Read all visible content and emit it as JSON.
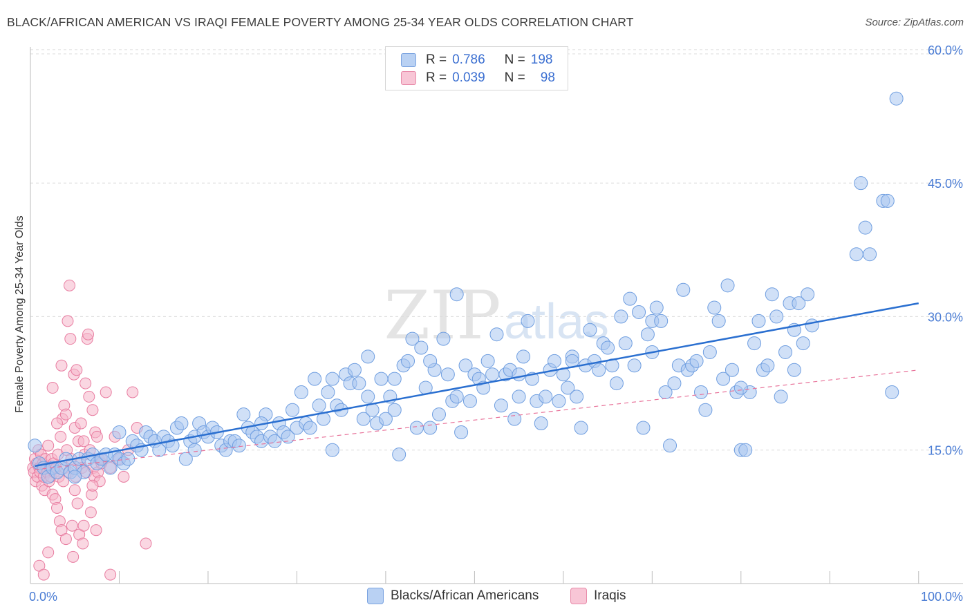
{
  "title": "BLACK/AFRICAN AMERICAN VS IRAQI FEMALE POVERTY AMONG 25-34 YEAR OLDS CORRELATION CHART",
  "source": "Source: ZipAtlas.com",
  "watermark": {
    "zip": "ZIP",
    "atlas": "atlas"
  },
  "colors": {
    "blue_fill": "#a9c6f0",
    "blue_stroke": "#6f9ee0",
    "blue_line": "#2a6fd0",
    "pink_fill": "#f5b6cb",
    "pink_stroke": "#e87ca0",
    "pink_line": "#e8739a",
    "tick_text": "#4a7cd4",
    "grid": "#dcdcdc"
  },
  "legend": {
    "rows": [
      {
        "r_label": "R =",
        "r_value": "0.786",
        "n_label": "N =",
        "n_value": "198"
      },
      {
        "r_label": "R =",
        "r_value": "0.039",
        "n_label": "N =",
        "n_value": "98"
      }
    ]
  },
  "bottom_legend": {
    "series1": "Blacks/African Americans",
    "series2": "Iraqis"
  },
  "chart_data": {
    "type": "scatter",
    "title": "BLACK/AFRICAN AMERICAN VS IRAQI FEMALE POVERTY AMONG 25-34 YEAR OLDS CORRELATION CHART",
    "xlabel": "",
    "ylabel": "Female Poverty Among 25-34 Year Olds",
    "xlim": [
      0,
      105
    ],
    "ylim": [
      0,
      60.3
    ],
    "x_ticks": [
      0,
      100
    ],
    "x_tick_labels": [
      "0.0%",
      "100.0%"
    ],
    "y_ticks": [
      15,
      30,
      45,
      60
    ],
    "y_tick_labels": [
      "15.0%",
      "30.0%",
      "45.0%",
      "60.0%"
    ],
    "grid": true,
    "legend_position": "top-center",
    "series": [
      {
        "name": "Blacks/African Americans",
        "r": 0.786,
        "n": 198,
        "trend": {
          "x": [
            0.5,
            100
          ],
          "y": [
            13.2,
            31.5
          ]
        },
        "points": [
          [
            0.5,
            15.5
          ],
          [
            1.0,
            13.5
          ],
          [
            1.5,
            13.0
          ],
          [
            2.0,
            12.0
          ],
          [
            2.5,
            13.0
          ],
          [
            3.0,
            12.5
          ],
          [
            3.5,
            13.0
          ],
          [
            4.0,
            14.0
          ],
          [
            4.5,
            12.5
          ],
          [
            5.0,
            13.0
          ],
          [
            5.5,
            14.0
          ],
          [
            6.0,
            12.5
          ],
          [
            6.5,
            14.0
          ],
          [
            7.0,
            14.5
          ],
          [
            7.5,
            13.5
          ],
          [
            8.0,
            14.0
          ],
          [
            8.5,
            14.5
          ],
          [
            9.0,
            13.0
          ],
          [
            9.5,
            14.5
          ],
          [
            10.0,
            14.0
          ],
          [
            10.5,
            13.5
          ],
          [
            11.0,
            14.0
          ],
          [
            11.5,
            16.0
          ],
          [
            12.0,
            15.5
          ],
          [
            12.5,
            15.0
          ],
          [
            13.0,
            17.0
          ],
          [
            13.5,
            16.5
          ],
          [
            14.0,
            16.0
          ],
          [
            14.5,
            15.0
          ],
          [
            15.0,
            16.5
          ],
          [
            15.5,
            16.0
          ],
          [
            16.0,
            15.5
          ],
          [
            16.5,
            17.5
          ],
          [
            17.0,
            18.0
          ],
          [
            17.5,
            14.0
          ],
          [
            18.0,
            16.0
          ],
          [
            18.5,
            16.5
          ],
          [
            19.0,
            18.0
          ],
          [
            19.5,
            17.0
          ],
          [
            20.0,
            16.5
          ],
          [
            20.5,
            17.5
          ],
          [
            21.0,
            17.0
          ],
          [
            21.5,
            15.5
          ],
          [
            22.0,
            15.0
          ],
          [
            22.5,
            16.0
          ],
          [
            23.0,
            16.0
          ],
          [
            23.5,
            15.5
          ],
          [
            24.0,
            19.0
          ],
          [
            24.5,
            17.5
          ],
          [
            25.0,
            17.0
          ],
          [
            25.5,
            16.5
          ],
          [
            26.0,
            16.0
          ],
          [
            26.5,
            19.0
          ],
          [
            27.0,
            16.5
          ],
          [
            27.5,
            16.0
          ],
          [
            28.0,
            18.0
          ],
          [
            28.5,
            17.0
          ],
          [
            29.0,
            16.5
          ],
          [
            29.5,
            19.5
          ],
          [
            30.0,
            17.5
          ],
          [
            30.5,
            21.5
          ],
          [
            31.0,
            18.0
          ],
          [
            31.5,
            17.5
          ],
          [
            32.0,
            23.0
          ],
          [
            32.5,
            20.0
          ],
          [
            33.0,
            18.5
          ],
          [
            33.5,
            21.5
          ],
          [
            34.0,
            15.0
          ],
          [
            34.5,
            20.0
          ],
          [
            35.0,
            19.5
          ],
          [
            35.5,
            23.5
          ],
          [
            36.0,
            22.5
          ],
          [
            36.5,
            24.0
          ],
          [
            37.0,
            22.5
          ],
          [
            37.5,
            18.5
          ],
          [
            38.0,
            21.0
          ],
          [
            38.5,
            19.5
          ],
          [
            39.0,
            18.0
          ],
          [
            39.5,
            23.0
          ],
          [
            40.0,
            18.5
          ],
          [
            40.5,
            21.0
          ],
          [
            41.0,
            19.5
          ],
          [
            41.5,
            14.5
          ],
          [
            42.0,
            24.5
          ],
          [
            42.5,
            25.0
          ],
          [
            43.0,
            27.5
          ],
          [
            43.5,
            17.5
          ],
          [
            44.0,
            26.5
          ],
          [
            44.5,
            22.0
          ],
          [
            45.0,
            17.5
          ],
          [
            45.5,
            24.0
          ],
          [
            46.0,
            19.0
          ],
          [
            46.5,
            27.5
          ],
          [
            47.0,
            23.5
          ],
          [
            47.5,
            20.5
          ],
          [
            48.0,
            21.0
          ],
          [
            48.5,
            17.0
          ],
          [
            49.0,
            24.5
          ],
          [
            49.5,
            20.5
          ],
          [
            50.0,
            23.5
          ],
          [
            50.5,
            23.0
          ],
          [
            51.0,
            22.0
          ],
          [
            51.5,
            25.0
          ],
          [
            52.0,
            23.5
          ],
          [
            52.5,
            28.0
          ],
          [
            53.0,
            20.0
          ],
          [
            53.5,
            23.5
          ],
          [
            54.0,
            24.0
          ],
          [
            54.5,
            18.5
          ],
          [
            55.0,
            21.0
          ],
          [
            55.5,
            25.5
          ],
          [
            56.0,
            29.5
          ],
          [
            56.5,
            23.0
          ],
          [
            57.0,
            20.5
          ],
          [
            57.5,
            18.0
          ],
          [
            58.0,
            21.0
          ],
          [
            58.5,
            24.0
          ],
          [
            59.0,
            25.0
          ],
          [
            59.5,
            20.5
          ],
          [
            60.0,
            23.5
          ],
          [
            60.5,
            22.0
          ],
          [
            61.0,
            25.5
          ],
          [
            61.5,
            21.0
          ],
          [
            62.0,
            17.5
          ],
          [
            62.5,
            24.5
          ],
          [
            63.0,
            28.5
          ],
          [
            63.5,
            25.0
          ],
          [
            64.0,
            24.0
          ],
          [
            64.5,
            27.0
          ],
          [
            65.0,
            26.5
          ],
          [
            65.5,
            24.5
          ],
          [
            66.0,
            22.5
          ],
          [
            66.5,
            30.0
          ],
          [
            67.0,
            27.0
          ],
          [
            67.5,
            32.0
          ],
          [
            68.0,
            24.5
          ],
          [
            68.5,
            30.5
          ],
          [
            69.0,
            17.5
          ],
          [
            69.5,
            28.0
          ],
          [
            70.0,
            29.5
          ],
          [
            70.5,
            31.0
          ],
          [
            71.0,
            29.5
          ],
          [
            71.5,
            21.5
          ],
          [
            72.0,
            15.5
          ],
          [
            72.5,
            22.5
          ],
          [
            73.0,
            24.5
          ],
          [
            73.5,
            33.0
          ],
          [
            74.0,
            24.0
          ],
          [
            74.5,
            24.5
          ],
          [
            75.0,
            25.0
          ],
          [
            75.5,
            21.5
          ],
          [
            76.0,
            19.5
          ],
          [
            76.5,
            26.0
          ],
          [
            77.0,
            31.0
          ],
          [
            77.5,
            29.5
          ],
          [
            78.0,
            23.0
          ],
          [
            78.5,
            33.5
          ],
          [
            79.0,
            24.0
          ],
          [
            79.5,
            21.5
          ],
          [
            80.0,
            15.0
          ],
          [
            80.5,
            15.0
          ],
          [
            81.0,
            21.5
          ],
          [
            81.5,
            27.0
          ],
          [
            82.0,
            29.5
          ],
          [
            82.5,
            24.0
          ],
          [
            83.0,
            24.5
          ],
          [
            83.5,
            32.5
          ],
          [
            84.0,
            30.0
          ],
          [
            84.5,
            21.0
          ],
          [
            85.0,
            26.0
          ],
          [
            85.5,
            31.5
          ],
          [
            86.0,
            28.5
          ],
          [
            86.5,
            31.5
          ],
          [
            87.0,
            27.0
          ],
          [
            87.5,
            32.5
          ],
          [
            88.0,
            29.0
          ],
          [
            93.5,
            45.0
          ],
          [
            94.0,
            40.0
          ],
          [
            93.0,
            37.0
          ],
          [
            94.5,
            37.0
          ],
          [
            96.0,
            43.0
          ],
          [
            96.5,
            43.0
          ],
          [
            97.0,
            21.5
          ],
          [
            97.5,
            54.5
          ],
          [
            41.0,
            23.0
          ],
          [
            55.0,
            23.5
          ],
          [
            61.0,
            25.0
          ],
          [
            70.0,
            26.0
          ],
          [
            80.0,
            22.0
          ],
          [
            86.0,
            24.0
          ],
          [
            38.0,
            25.5
          ],
          [
            48.0,
            32.5
          ],
          [
            18.5,
            15.0
          ],
          [
            10.0,
            17.0
          ],
          [
            5.0,
            12.0
          ],
          [
            26.0,
            18.0
          ],
          [
            34.0,
            23.0
          ],
          [
            45.0,
            25.0
          ]
        ]
      },
      {
        "name": "Iraqis",
        "r": 0.039,
        "n": 98,
        "trend": {
          "x": [
            0.5,
            100
          ],
          "y": [
            12.8,
            24.0
          ]
        },
        "points": [
          [
            0.3,
            13.0
          ],
          [
            0.4,
            12.5
          ],
          [
            0.5,
            14.0
          ],
          [
            0.6,
            11.5
          ],
          [
            0.7,
            13.5
          ],
          [
            0.8,
            12.0
          ],
          [
            0.9,
            15.0
          ],
          [
            1.0,
            13.0
          ],
          [
            1.1,
            12.5
          ],
          [
            1.2,
            14.5
          ],
          [
            1.3,
            11.0
          ],
          [
            1.4,
            13.5
          ],
          [
            1.5,
            12.0
          ],
          [
            1.6,
            10.5
          ],
          [
            1.7,
            14.0
          ],
          [
            1.8,
            13.0
          ],
          [
            1.9,
            12.5
          ],
          [
            2.0,
            15.5
          ],
          [
            2.1,
            11.5
          ],
          [
            2.2,
            13.0
          ],
          [
            2.3,
            12.0
          ],
          [
            2.4,
            14.0
          ],
          [
            2.5,
            10.0
          ],
          [
            2.6,
            13.5
          ],
          [
            2.7,
            12.5
          ],
          [
            2.8,
            9.5
          ],
          [
            2.9,
            13.0
          ],
          [
            3.0,
            8.5
          ],
          [
            3.1,
            14.5
          ],
          [
            3.2,
            12.0
          ],
          [
            3.3,
            7.0
          ],
          [
            3.4,
            16.5
          ],
          [
            3.5,
            6.0
          ],
          [
            3.6,
            18.5
          ],
          [
            3.7,
            11.5
          ],
          [
            3.8,
            20.0
          ],
          [
            3.9,
            13.0
          ],
          [
            4.0,
            5.0
          ],
          [
            4.1,
            15.0
          ],
          [
            4.2,
            29.5
          ],
          [
            4.3,
            12.5
          ],
          [
            4.4,
            33.5
          ],
          [
            4.5,
            27.5
          ],
          [
            4.6,
            14.0
          ],
          [
            4.7,
            6.5
          ],
          [
            4.8,
            3.0
          ],
          [
            4.9,
            23.5
          ],
          [
            5.0,
            17.5
          ],
          [
            5.1,
            12.0
          ],
          [
            5.2,
            24.0
          ],
          [
            5.3,
            9.0
          ],
          [
            5.4,
            16.0
          ],
          [
            5.5,
            5.5
          ],
          [
            5.6,
            13.5
          ],
          [
            5.7,
            18.0
          ],
          [
            5.8,
            13.0
          ],
          [
            5.9,
            4.5
          ],
          [
            6.0,
            6.5
          ],
          [
            6.1,
            14.5
          ],
          [
            6.2,
            22.5
          ],
          [
            6.3,
            12.5
          ],
          [
            6.4,
            27.5
          ],
          [
            6.5,
            28.0
          ],
          [
            6.6,
            21.0
          ],
          [
            6.7,
            15.0
          ],
          [
            6.8,
            8.0
          ],
          [
            6.9,
            10.0
          ],
          [
            7.0,
            19.5
          ],
          [
            7.1,
            13.0
          ],
          [
            7.2,
            12.0
          ],
          [
            7.3,
            17.0
          ],
          [
            7.4,
            6.0
          ],
          [
            7.5,
            16.5
          ],
          [
            7.6,
            12.5
          ],
          [
            7.7,
            14.0
          ],
          [
            7.8,
            11.5
          ],
          [
            8.0,
            13.5
          ],
          [
            8.5,
            21.5
          ],
          [
            9.0,
            1.0
          ],
          [
            9.5,
            16.5
          ],
          [
            10.0,
            14.0
          ],
          [
            10.5,
            12.0
          ],
          [
            11.0,
            15.0
          ],
          [
            11.5,
            21.5
          ],
          [
            12.0,
            17.5
          ],
          [
            13.0,
            4.5
          ],
          [
            1.0,
            2.0
          ],
          [
            1.5,
            1.0
          ],
          [
            2.0,
            3.5
          ],
          [
            2.5,
            22.0
          ],
          [
            3.0,
            18.0
          ],
          [
            3.5,
            24.5
          ],
          [
            4.0,
            19.0
          ],
          [
            5.0,
            10.5
          ],
          [
            6.0,
            16.0
          ],
          [
            7.0,
            11.0
          ],
          [
            8.0,
            14.0
          ],
          [
            9.0,
            13.0
          ]
        ]
      }
    ]
  }
}
